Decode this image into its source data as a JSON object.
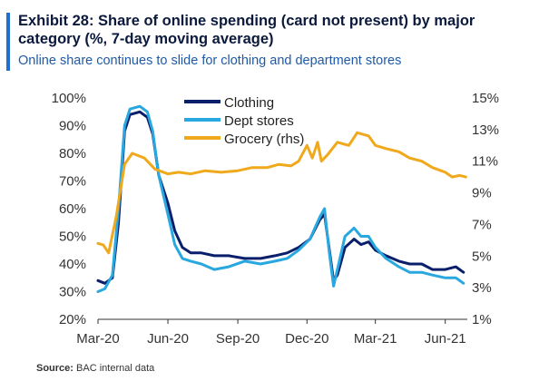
{
  "title": "Exhibit 28: Share of online spending (card not present) by major category (%, 7-day moving average)",
  "subtitle": "Online share continues to slide for clothing and department stores",
  "source_label": "Source:",
  "source_text": "BAC internal data",
  "colors": {
    "clothing": "#0a1f6b",
    "dept": "#29a8e0",
    "grocery": "#f0a81c",
    "accent": "#1f6fd1"
  },
  "chart_data": {
    "type": "line",
    "title": "Exhibit 28: Share of online spending (card not present) by major category (%, 7-day moving average)",
    "x_ticks": [
      "Mar-20",
      "Jun-20",
      "Sep-20",
      "Dec-20",
      "Mar-21",
      "Jun-21"
    ],
    "x_range": [
      "2020-03-01",
      "2021-06-30"
    ],
    "ylim_left": [
      20,
      100
    ],
    "ylim_right": [
      1,
      15
    ],
    "y_left_ticks": [
      "20%",
      "30%",
      "40%",
      "50%",
      "60%",
      "70%",
      "80%",
      "90%",
      "100%"
    ],
    "y_right_ticks": [
      "1%",
      "3%",
      "5%",
      "7%",
      "9%",
      "11%",
      "13%",
      "15%"
    ],
    "legend": "top-center",
    "grid": false,
    "series": [
      {
        "name": "Clothing",
        "axis": "left",
        "color": "#0a1f6b",
        "points": [
          [
            "2020-03-01",
            34
          ],
          [
            "2020-03-10",
            33
          ],
          [
            "2020-03-20",
            35
          ],
          [
            "2020-03-28",
            55
          ],
          [
            "2020-04-05",
            88
          ],
          [
            "2020-04-12",
            94
          ],
          [
            "2020-04-25",
            95
          ],
          [
            "2020-05-05",
            93
          ],
          [
            "2020-05-12",
            87
          ],
          [
            "2020-05-20",
            72
          ],
          [
            "2020-06-01",
            62
          ],
          [
            "2020-06-10",
            52
          ],
          [
            "2020-06-20",
            46
          ],
          [
            "2020-07-01",
            44
          ],
          [
            "2020-07-15",
            44
          ],
          [
            "2020-08-01",
            43
          ],
          [
            "2020-08-20",
            43
          ],
          [
            "2020-09-10",
            42
          ],
          [
            "2020-10-01",
            42
          ],
          [
            "2020-10-20",
            43
          ],
          [
            "2020-11-05",
            44
          ],
          [
            "2020-11-20",
            46
          ],
          [
            "2020-12-05",
            49
          ],
          [
            "2020-12-18",
            56
          ],
          [
            "2020-12-24",
            58
          ],
          [
            "2020-12-30",
            46
          ],
          [
            "2021-01-05",
            34
          ],
          [
            "2021-01-10",
            36
          ],
          [
            "2021-01-20",
            46
          ],
          [
            "2021-02-01",
            49
          ],
          [
            "2021-02-10",
            47
          ],
          [
            "2021-02-20",
            48
          ],
          [
            "2021-03-01",
            45
          ],
          [
            "2021-03-15",
            43
          ],
          [
            "2021-04-01",
            41
          ],
          [
            "2021-04-15",
            40
          ],
          [
            "2021-05-01",
            40
          ],
          [
            "2021-05-15",
            38
          ],
          [
            "2021-06-01",
            38
          ],
          [
            "2021-06-15",
            39
          ],
          [
            "2021-06-25",
            37
          ]
        ]
      },
      {
        "name": "Dept stores",
        "axis": "left",
        "color": "#29a8e0",
        "points": [
          [
            "2020-03-01",
            30
          ],
          [
            "2020-03-10",
            31
          ],
          [
            "2020-03-20",
            36
          ],
          [
            "2020-03-28",
            60
          ],
          [
            "2020-04-05",
            90
          ],
          [
            "2020-04-12",
            96
          ],
          [
            "2020-04-25",
            97
          ],
          [
            "2020-05-05",
            95
          ],
          [
            "2020-05-12",
            88
          ],
          [
            "2020-05-20",
            72
          ],
          [
            "2020-06-01",
            58
          ],
          [
            "2020-06-10",
            47
          ],
          [
            "2020-06-20",
            42
          ],
          [
            "2020-07-01",
            41
          ],
          [
            "2020-07-15",
            40
          ],
          [
            "2020-08-01",
            38
          ],
          [
            "2020-08-20",
            39
          ],
          [
            "2020-09-10",
            41
          ],
          [
            "2020-10-01",
            40
          ],
          [
            "2020-10-20",
            41
          ],
          [
            "2020-11-05",
            42
          ],
          [
            "2020-11-20",
            45
          ],
          [
            "2020-12-05",
            49
          ],
          [
            "2020-12-18",
            57
          ],
          [
            "2020-12-24",
            60
          ],
          [
            "2020-12-30",
            45
          ],
          [
            "2021-01-05",
            32
          ],
          [
            "2021-01-10",
            38
          ],
          [
            "2021-01-20",
            50
          ],
          [
            "2021-02-01",
            53
          ],
          [
            "2021-02-10",
            50
          ],
          [
            "2021-02-20",
            50
          ],
          [
            "2021-03-01",
            46
          ],
          [
            "2021-03-15",
            42
          ],
          [
            "2021-04-01",
            39
          ],
          [
            "2021-04-15",
            37
          ],
          [
            "2021-05-01",
            37
          ],
          [
            "2021-05-15",
            36
          ],
          [
            "2021-06-01",
            35
          ],
          [
            "2021-06-15",
            35
          ],
          [
            "2021-06-25",
            33
          ]
        ]
      },
      {
        "name": "Grocery (rhs)",
        "axis": "right",
        "color": "#f0a81c",
        "points": [
          [
            "2020-03-01",
            5.8
          ],
          [
            "2020-03-08",
            5.7
          ],
          [
            "2020-03-15",
            5.2
          ],
          [
            "2020-03-25",
            7.5
          ],
          [
            "2020-04-05",
            10.8
          ],
          [
            "2020-04-15",
            11.5
          ],
          [
            "2020-05-01",
            11.2
          ],
          [
            "2020-05-15",
            10.5
          ],
          [
            "2020-06-01",
            10.2
          ],
          [
            "2020-06-15",
            10.3
          ],
          [
            "2020-07-01",
            10.2
          ],
          [
            "2020-07-20",
            10.4
          ],
          [
            "2020-08-10",
            10.3
          ],
          [
            "2020-09-01",
            10.4
          ],
          [
            "2020-09-20",
            10.6
          ],
          [
            "2020-10-10",
            10.6
          ],
          [
            "2020-10-25",
            10.8
          ],
          [
            "2020-11-10",
            10.7
          ],
          [
            "2020-11-20",
            11.0
          ],
          [
            "2020-12-01",
            12.0
          ],
          [
            "2020-12-08",
            11.2
          ],
          [
            "2020-12-15",
            12.2
          ],
          [
            "2020-12-20",
            11.0
          ],
          [
            "2020-12-28",
            11.4
          ],
          [
            "2021-01-10",
            12.2
          ],
          [
            "2021-01-25",
            12.0
          ],
          [
            "2021-02-05",
            12.8
          ],
          [
            "2021-02-20",
            12.6
          ],
          [
            "2021-03-01",
            12.0
          ],
          [
            "2021-03-15",
            11.8
          ],
          [
            "2021-04-01",
            11.6
          ],
          [
            "2021-04-15",
            11.2
          ],
          [
            "2021-05-01",
            11.0
          ],
          [
            "2021-05-15",
            10.6
          ],
          [
            "2021-06-01",
            10.3
          ],
          [
            "2021-06-10",
            10.0
          ],
          [
            "2021-06-20",
            10.1
          ],
          [
            "2021-06-28",
            10.0
          ]
        ]
      }
    ]
  }
}
